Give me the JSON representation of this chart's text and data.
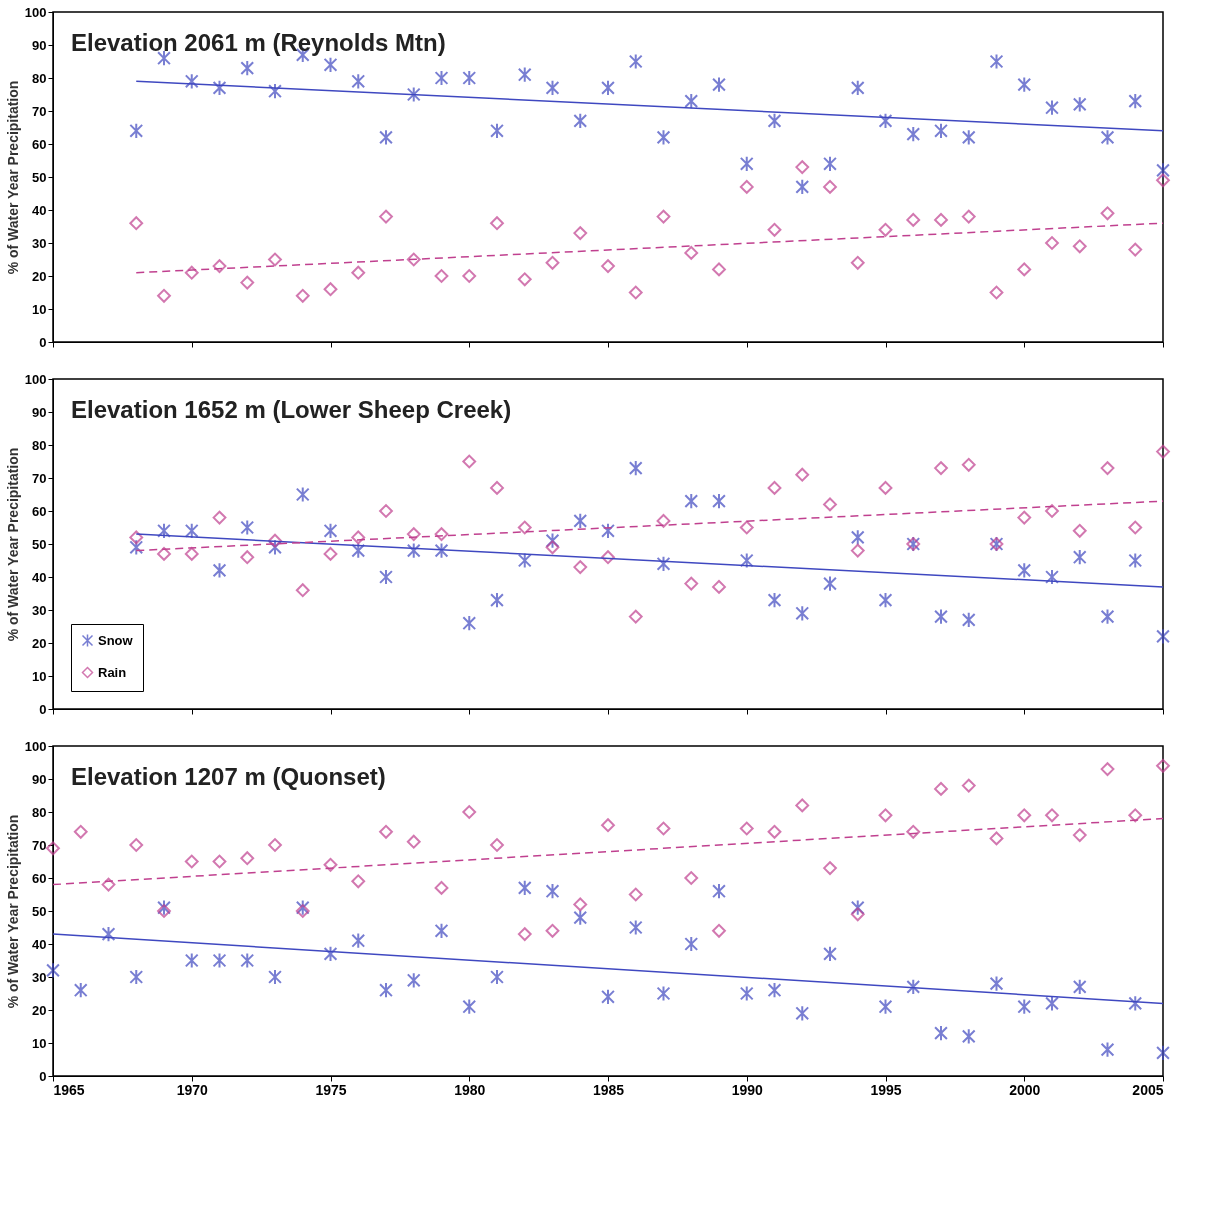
{
  "chart_data": [
    {
      "type": "scatter",
      "title": "Elevation 2061 m (Reynolds Mtn)",
      "ylabel": "% of Water Year Precipitation",
      "xlim": [
        1965,
        2005
      ],
      "xticks": [
        1965,
        1970,
        1975,
        1980,
        1985,
        1990,
        1995,
        2000,
        2005
      ],
      "ylim": [
        0,
        100
      ],
      "yticks": [
        0,
        10,
        20,
        30,
        40,
        50,
        60,
        70,
        80,
        90,
        100
      ],
      "tick_labels": "y",
      "grid": false,
      "legend": false,
      "x": [
        1968,
        1969,
        1970,
        1971,
        1972,
        1973,
        1974,
        1975,
        1976,
        1977,
        1978,
        1979,
        1980,
        1981,
        1982,
        1983,
        1984,
        1985,
        1986,
        1987,
        1988,
        1989,
        1990,
        1991,
        1992,
        1993,
        1994,
        1995,
        1996,
        1997,
        1998,
        1999,
        2000,
        2001,
        2002,
        2003,
        2004,
        2005
      ],
      "series": [
        {
          "color": "#3f48c0",
          "marker": "cross",
          "values": [
            64,
            86,
            79,
            77,
            83,
            76,
            87,
            84,
            79,
            62,
            75,
            80,
            80,
            64,
            81,
            77,
            67,
            77,
            85,
            62,
            73,
            78,
            54,
            67,
            47,
            54,
            77,
            67,
            63,
            64,
            62,
            85,
            78,
            71,
            72,
            62,
            73,
            52
          ]
        },
        {
          "color": "#c0408f",
          "marker": "diamond",
          "values": [
            36,
            14,
            21,
            23,
            18,
            25,
            14,
            16,
            21,
            38,
            25,
            20,
            20,
            36,
            19,
            24,
            33,
            23,
            15,
            38,
            27,
            22,
            47,
            34,
            53,
            47,
            24,
            34,
            37,
            37,
            38,
            15,
            22,
            30,
            29,
            39,
            28,
            49
          ]
        },
        {
          "type": "line",
          "color": "#3f48c0",
          "line_style": "solid",
          "x": [
            1968,
            2005
          ],
          "values": [
            79,
            64
          ]
        },
        {
          "type": "line",
          "color": "#c0408f",
          "line_style": "dashed",
          "x": [
            1968,
            2005
          ],
          "values": [
            21,
            36
          ]
        }
      ]
    },
    {
      "type": "scatter",
      "title": "Elevation 1652 m (Lower Sheep Creek)",
      "ylabel": "% of Water Year Precipitation",
      "xlim": [
        1965,
        2005
      ],
      "xticks": [
        1965,
        1970,
        1975,
        1980,
        1985,
        1990,
        1995,
        2000,
        2005
      ],
      "ylim": [
        0,
        100
      ],
      "yticks": [
        0,
        10,
        20,
        30,
        40,
        50,
        60,
        70,
        80,
        90,
        100
      ],
      "tick_labels": "y",
      "grid": false,
      "legend": "bottom left",
      "x": [
        1968,
        1969,
        1970,
        1971,
        1972,
        1973,
        1974,
        1975,
        1976,
        1977,
        1978,
        1979,
        1980,
        1981,
        1982,
        1983,
        1984,
        1985,
        1986,
        1987,
        1988,
        1989,
        1990,
        1991,
        1992,
        1993,
        1994,
        1995,
        1996,
        1997,
        1998,
        1999,
        2000,
        2001,
        2002,
        2003,
        2004,
        2005
      ],
      "series": [
        {
          "name": "Snow",
          "color": "#3f48c0",
          "marker": "cross",
          "values": [
            49,
            54,
            54,
            42,
            55,
            49,
            65,
            54,
            48,
            40,
            48,
            48,
            26,
            33,
            45,
            51,
            57,
            54,
            73,
            44,
            63,
            63,
            45,
            33,
            29,
            38,
            52,
            33,
            50,
            28,
            27,
            50,
            42,
            40,
            46,
            28,
            45,
            22
          ]
        },
        {
          "name": "Rain",
          "color": "#c0408f",
          "marker": "diamond",
          "values": [
            52,
            47,
            47,
            58,
            46,
            51,
            36,
            47,
            52,
            60,
            53,
            53,
            75,
            67,
            55,
            49,
            43,
            46,
            28,
            57,
            38,
            37,
            55,
            67,
            71,
            62,
            48,
            67,
            50,
            73,
            74,
            50,
            58,
            60,
            54,
            73,
            55,
            78
          ]
        },
        {
          "type": "line",
          "color": "#3f48c0",
          "line_style": "solid",
          "x": [
            1968,
            2005
          ],
          "values": [
            53,
            37
          ]
        },
        {
          "type": "line",
          "color": "#c0408f",
          "line_style": "dashed",
          "x": [
            1968,
            2005
          ],
          "values": [
            48,
            63
          ]
        }
      ]
    },
    {
      "type": "scatter",
      "title": "Elevation 1207 m (Quonset)",
      "ylabel": "% of Water Year Precipitation",
      "xlim": [
        1965,
        2005
      ],
      "xticks": [
        1965,
        1970,
        1975,
        1980,
        1985,
        1990,
        1995,
        2000,
        2005
      ],
      "ylim": [
        0,
        100
      ],
      "yticks": [
        0,
        10,
        20,
        30,
        40,
        50,
        60,
        70,
        80,
        90,
        100
      ],
      "grid": false,
      "legend": false,
      "x": [
        1965,
        1966,
        1967,
        1968,
        1969,
        1970,
        1971,
        1972,
        1973,
        1974,
        1975,
        1976,
        1977,
        1978,
        1979,
        1980,
        1981,
        1982,
        1983,
        1984,
        1985,
        1986,
        1987,
        1988,
        1989,
        1990,
        1991,
        1992,
        1993,
        1994,
        1995,
        1996,
        1997,
        1998,
        1999,
        2000,
        2001,
        2002,
        2003,
        2004,
        2005
      ],
      "series": [
        {
          "color": "#3f48c0",
          "marker": "cross",
          "values": [
            32,
            26,
            43,
            30,
            51,
            35,
            35,
            35,
            30,
            51,
            37,
            41,
            26,
            29,
            44,
            21,
            30,
            57,
            56,
            48,
            24,
            45,
            25,
            40,
            56,
            25,
            26,
            19,
            37,
            51,
            21,
            27,
            13,
            12,
            28,
            21,
            22,
            27,
            8,
            22,
            7
          ]
        },
        {
          "color": "#c0408f",
          "marker": "diamond",
          "values": [
            69,
            74,
            58,
            70,
            50,
            65,
            65,
            66,
            70,
            50,
            64,
            59,
            74,
            71,
            57,
            80,
            70,
            43,
            44,
            52,
            76,
            55,
            75,
            60,
            44,
            75,
            74,
            82,
            63,
            49,
            79,
            74,
            87,
            88,
            72,
            79,
            79,
            73,
            93,
            79,
            94
          ]
        },
        {
          "type": "line",
          "color": "#3f48c0",
          "line_style": "solid",
          "x": [
            1965,
            2005
          ],
          "values": [
            43,
            22
          ]
        },
        {
          "type": "line",
          "color": "#c0408f",
          "line_style": "dashed",
          "x": [
            1965,
            2005
          ],
          "values": [
            58,
            78
          ]
        }
      ]
    }
  ]
}
